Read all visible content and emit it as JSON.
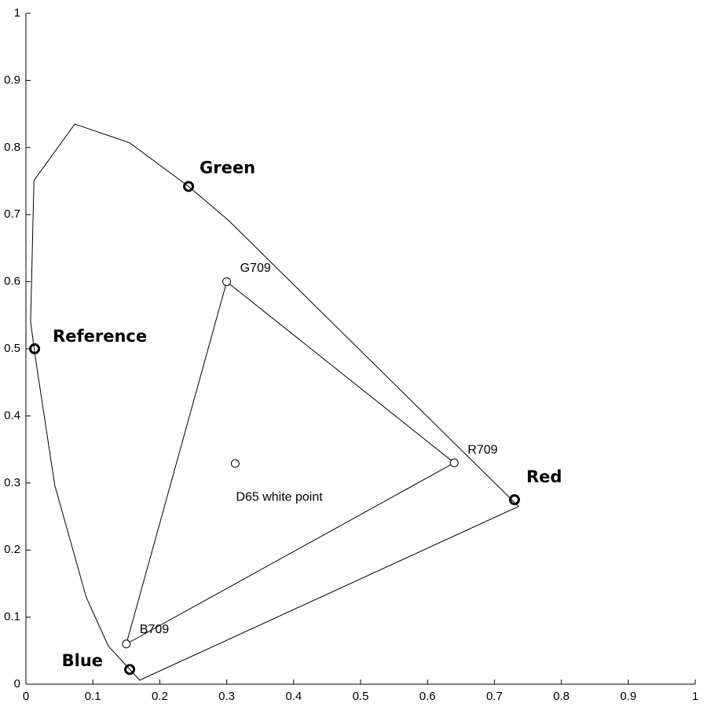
{
  "chart_data": {
    "type": "scatter",
    "xlim": [
      0,
      1
    ],
    "ylim": [
      0,
      1
    ],
    "xticks": [
      0,
      0.1,
      0.2,
      0.3,
      0.4,
      0.5,
      0.6,
      0.7,
      0.8,
      0.9,
      1
    ],
    "yticks": [
      0,
      0.1,
      0.2,
      0.3,
      0.4,
      0.5,
      0.6,
      0.7,
      0.8,
      0.9,
      1
    ],
    "color": "#000000",
    "locus": {
      "x": [
        0.17,
        0.123,
        0.09,
        0.043,
        0.015,
        0.007,
        0.012,
        0.073,
        0.155,
        0.243,
        0.302,
        0.736
      ],
      "y": [
        0.006,
        0.057,
        0.13,
        0.297,
        0.481,
        0.54,
        0.751,
        0.835,
        0.807,
        0.742,
        0.692,
        0.265
      ]
    },
    "gamut": [
      {
        "label": "G709",
        "x": 0.3,
        "y": 0.6
      },
      {
        "label": "R709",
        "x": 0.64,
        "y": 0.33
      },
      {
        "label": "B709",
        "x": 0.15,
        "y": 0.06
      }
    ],
    "white_point": {
      "label": "D65 white point",
      "x": 0.3127,
      "y": 0.329
    },
    "primaries": [
      {
        "label": "Green",
        "x": 0.243,
        "y": 0.742
      },
      {
        "label": "Red",
        "x": 0.73,
        "y": 0.275
      },
      {
        "label": "Blue",
        "x": 0.155,
        "y": 0.022
      },
      {
        "label": "Reference",
        "x": 0.013,
        "y": 0.5
      }
    ]
  }
}
